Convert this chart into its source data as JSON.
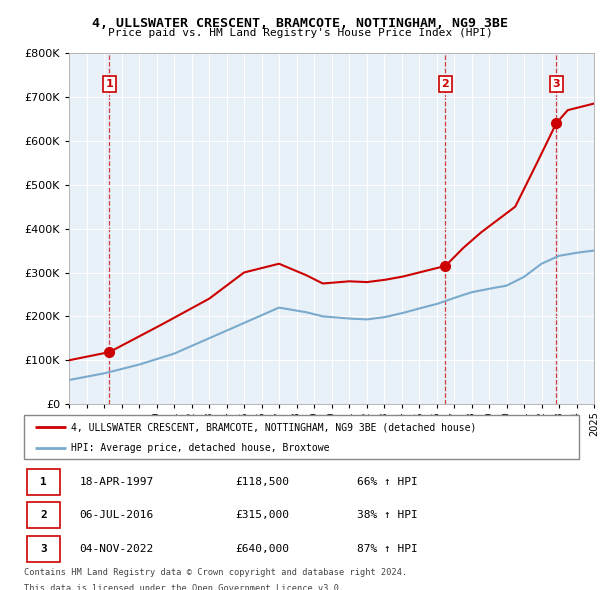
{
  "title": "4, ULLSWATER CRESCENT, BRAMCOTE, NOTTINGHAM, NG9 3BE",
  "subtitle": "Price paid vs. HM Land Registry's House Price Index (HPI)",
  "sales": [
    {
      "date": 1997.3,
      "price": 118500,
      "label": "1"
    },
    {
      "date": 2016.51,
      "price": 315000,
      "label": "2"
    },
    {
      "date": 2022.84,
      "price": 640000,
      "label": "3"
    }
  ],
  "sale_dates_str": [
    "18-APR-1997",
    "06-JUL-2016",
    "04-NOV-2022"
  ],
  "sale_prices_str": [
    "£118,500",
    "£315,000",
    "£640,000"
  ],
  "sale_hpi_str": [
    "66% ↑ HPI",
    "38% ↑ HPI",
    "87% ↑ HPI"
  ],
  "legend_line1": "4, ULLSWATER CRESCENT, BRAMCOTE, NOTTINGHAM, NG9 3BE (detached house)",
  "legend_line2": "HPI: Average price, detached house, Broxtowe",
  "footer1": "Contains HM Land Registry data © Crown copyright and database right 2024.",
  "footer2": "This data is licensed under the Open Government Licence v3.0.",
  "xlim": [
    1995,
    2025
  ],
  "ylim": [
    0,
    800000
  ],
  "yticks": [
    0,
    100000,
    200000,
    300000,
    400000,
    500000,
    600000,
    700000,
    800000
  ],
  "xticks": [
    1995,
    1996,
    1997,
    1998,
    1999,
    2000,
    2001,
    2002,
    2003,
    2004,
    2005,
    2006,
    2007,
    2008,
    2009,
    2010,
    2011,
    2012,
    2013,
    2014,
    2015,
    2016,
    2017,
    2018,
    2019,
    2020,
    2021,
    2022,
    2023,
    2024,
    2025
  ],
  "red_color": "#cc0000",
  "blue_color": "#7aaacc",
  "dashed_color": "#cc0000",
  "plot_bg": "#e8f0f8",
  "grid_color": "#ffffff"
}
